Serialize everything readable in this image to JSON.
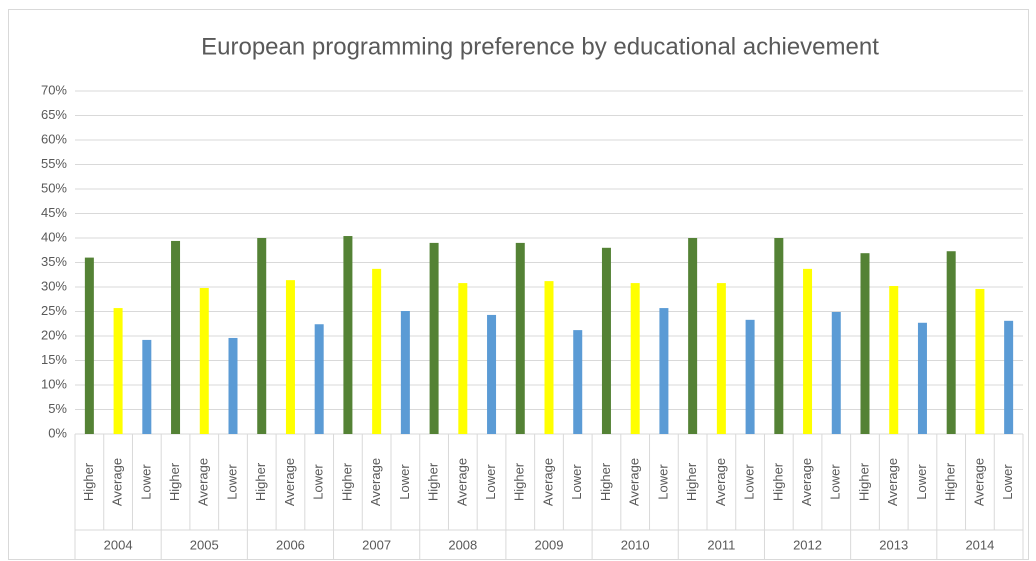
{
  "chart_data": {
    "type": "bar",
    "title": "European programming preference by educational achievement",
    "categories": [
      "2004",
      "2005",
      "2006",
      "2007",
      "2008",
      "2009",
      "2010",
      "2011",
      "2012",
      "2013",
      "2014"
    ],
    "series": [
      {
        "name": "Higher",
        "color": "#548235",
        "values": [
          36,
          39.4,
          40,
          40.4,
          39,
          39,
          38,
          40,
          40,
          36.9,
          37.3
        ]
      },
      {
        "name": "Average",
        "color": "#ffff00",
        "values": [
          25.7,
          29.8,
          31.4,
          33.7,
          30.8,
          31.2,
          30.8,
          30.8,
          33.7,
          30.2,
          29.6
        ]
      },
      {
        "name": "Lower",
        "color": "#5b9bd5",
        "values": [
          19.2,
          19.6,
          22.4,
          25.1,
          24.3,
          21.2,
          25.7,
          23.3,
          24.9,
          22.7,
          23.1
        ]
      }
    ],
    "ylim": [
      0,
      70
    ],
    "yticks": [
      {
        "value": 0,
        "label": "0%"
      },
      {
        "value": 5,
        "label": "5%"
      },
      {
        "value": 10,
        "label": "10%"
      },
      {
        "value": 15,
        "label": "15%"
      },
      {
        "value": 20,
        "label": "20%"
      },
      {
        "value": 25,
        "label": "25%"
      },
      {
        "value": 30,
        "label": "30%"
      },
      {
        "value": 35,
        "label": "35%"
      },
      {
        "value": 40,
        "label": "40%"
      },
      {
        "value": 45,
        "label": "45%"
      },
      {
        "value": 50,
        "label": "50%"
      },
      {
        "value": 55,
        "label": "55%"
      },
      {
        "value": 60,
        "label": "60%"
      },
      {
        "value": 65,
        "label": "65%"
      },
      {
        "value": 70,
        "label": "70%"
      }
    ],
    "grid": true
  }
}
